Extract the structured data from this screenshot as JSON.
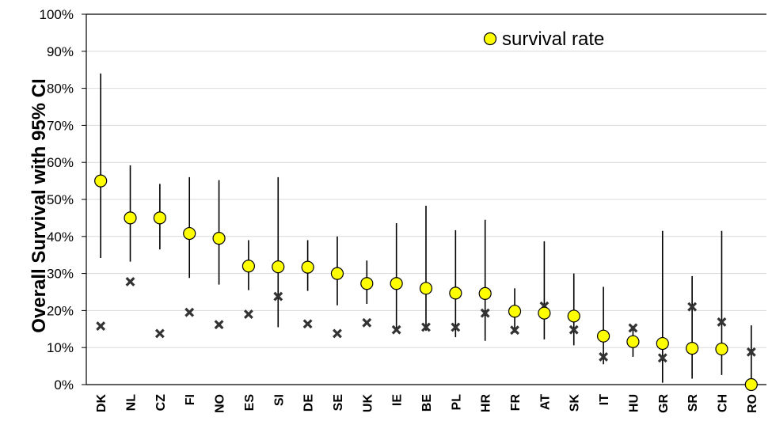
{
  "chart_data": {
    "type": "scatter",
    "title": "",
    "ylabel": "Overall Survival with 95% CI",
    "xlabel": "",
    "ylim": [
      0,
      100
    ],
    "yticks": [
      "0%",
      "10%",
      "20%",
      "30%",
      "40%",
      "50%",
      "60%",
      "70%",
      "80%",
      "90%",
      "100%"
    ],
    "ytick_values": [
      0,
      10,
      20,
      30,
      40,
      50,
      60,
      70,
      80,
      90,
      100
    ],
    "grid": true,
    "legend_position": "top-right",
    "categories": [
      "DK",
      "NL",
      "CZ",
      "FI",
      "NO",
      "ES",
      "SI",
      "DE",
      "SE",
      "UK",
      "IE",
      "BE",
      "PL",
      "HR",
      "FR",
      "AT",
      "SK",
      "IT",
      "HU",
      "GR",
      "SR",
      "CH",
      "RO"
    ],
    "series": [
      {
        "name": "survival rate",
        "marker": "circle",
        "color": "#ffff00",
        "values": [
          55,
          45,
          45,
          40.8,
          39.5,
          32,
          31.8,
          31.7,
          30,
          27.3,
          27.3,
          26,
          24.7,
          24.6,
          19.8,
          19.3,
          18.5,
          13.1,
          11.6,
          11.1,
          9.8,
          9.6,
          0
        ],
        "ci_low": [
          34.2,
          33.2,
          36.5,
          28.8,
          27,
          25.5,
          15.5,
          25.3,
          21.4,
          21.8,
          14.8,
          14.5,
          12.8,
          11.8,
          14,
          12.2,
          10.6,
          5.5,
          7.5,
          0.5,
          1.6,
          2.6,
          0
        ],
        "ci_high": [
          84,
          59.2,
          54.2,
          56,
          55.2,
          39,
          56,
          39,
          40,
          33.5,
          43.6,
          48.3,
          41.7,
          44.5,
          26,
          38.7,
          30,
          26.4,
          15.5,
          41.5,
          29.3,
          41.5,
          16
        ]
      },
      {
        "name": "",
        "marker": "x",
        "color": "#333333",
        "values": [
          15.8,
          27.8,
          13.8,
          19.5,
          16.2,
          19,
          23.8,
          16.4,
          13.8,
          16.7,
          14.8,
          15.5,
          15.5,
          19.3,
          14.7,
          21.2,
          14.8,
          7.5,
          15.3,
          7.2,
          21,
          16.9,
          8.8
        ]
      }
    ],
    "legend": {
      "label": "survival rate"
    }
  }
}
